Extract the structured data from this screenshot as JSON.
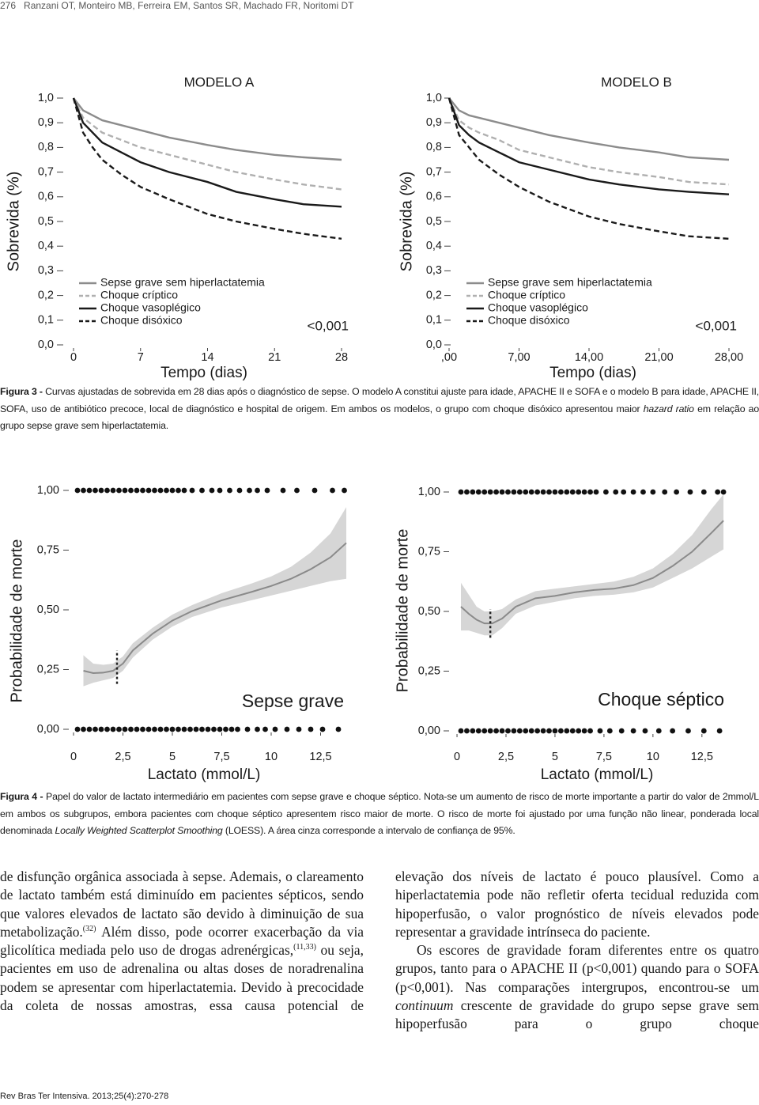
{
  "header": {
    "page": "276",
    "authors": "Ranzani OT, Monteiro MB, Ferreira EM, Santos SR, Machado FR, Noritomi DT"
  },
  "chart_data": [
    {
      "type": "line",
      "title": "MODELO A",
      "xlabel": "Tempo (dias)",
      "ylabel": "Sobrevida (%)",
      "annotation": "<0,001",
      "x": [
        0,
        1,
        2,
        3,
        5,
        7,
        10,
        14,
        17,
        21,
        24,
        28
      ],
      "xlim": [
        0,
        28
      ],
      "xticks": [
        0,
        7,
        14,
        21,
        28
      ],
      "ylim": [
        0,
        1
      ],
      "yticks": [
        {
          "value": 0,
          "label": "0,0"
        },
        {
          "value": 0.1,
          "label": "0,1"
        },
        {
          "value": 0.2,
          "label": "0,2"
        },
        {
          "value": 0.3,
          "label": "0,3"
        },
        {
          "value": 0.4,
          "label": "0,4"
        },
        {
          "value": 0.5,
          "label": "0,5"
        },
        {
          "value": 0.6,
          "label": "0,6"
        },
        {
          "value": 0.7,
          "label": "0,7"
        },
        {
          "value": 0.8,
          "label": "0,8"
        },
        {
          "value": 0.9,
          "label": "0,9"
        },
        {
          "value": 1,
          "label": "1,0"
        }
      ],
      "series": [
        {
          "name": "Sepse grave sem hiperlactatemia",
          "color": "#8c8c8c",
          "dash": false,
          "values": [
            1,
            0.95,
            0.93,
            0.91,
            0.89,
            0.87,
            0.84,
            0.81,
            0.79,
            0.77,
            0.76,
            0.75
          ]
        },
        {
          "name": "Choque críptico",
          "color": "#b0b0b0",
          "dash": true,
          "values": [
            1,
            0.92,
            0.89,
            0.86,
            0.83,
            0.8,
            0.77,
            0.73,
            0.7,
            0.67,
            0.65,
            0.63
          ]
        },
        {
          "name": "Choque vasoplégico",
          "color": "#1a1a1a",
          "dash": false,
          "values": [
            1,
            0.9,
            0.86,
            0.82,
            0.78,
            0.74,
            0.7,
            0.66,
            0.62,
            0.59,
            0.57,
            0.56
          ]
        },
        {
          "name": "Choque disóxico",
          "color": "#1a1a1a",
          "dash": true,
          "values": [
            1,
            0.86,
            0.8,
            0.75,
            0.69,
            0.64,
            0.59,
            0.53,
            0.5,
            0.47,
            0.45,
            0.43
          ]
        }
      ]
    },
    {
      "type": "line",
      "title": "MODELO B",
      "xlabel": "Tempo (dias)",
      "ylabel": "Sobrevida (%)",
      "annotation": "<0,001",
      "x": [
        0,
        1,
        2,
        3,
        5,
        7,
        10,
        14,
        17,
        21,
        24,
        28
      ],
      "xlim": [
        0,
        28
      ],
      "xticks": [
        {
          "value": 0,
          "label": ",00"
        },
        {
          "value": 7,
          "label": "7,00"
        },
        {
          "value": 14,
          "label": "14,00"
        },
        {
          "value": 21,
          "label": "21,00"
        },
        {
          "value": 28,
          "label": "28,00"
        }
      ],
      "ylim": [
        0,
        1
      ],
      "yticks": [
        {
          "value": 0,
          "label": "0,0"
        },
        {
          "value": 0.1,
          "label": "0,1"
        },
        {
          "value": 0.2,
          "label": "0,2"
        },
        {
          "value": 0.3,
          "label": "0,3"
        },
        {
          "value": 0.4,
          "label": "0,4"
        },
        {
          "value": 0.5,
          "label": "0,5"
        },
        {
          "value": 0.6,
          "label": "0,6"
        },
        {
          "value": 0.7,
          "label": "0,7"
        },
        {
          "value": 0.8,
          "label": "0,8"
        },
        {
          "value": 0.9,
          "label": "0,9"
        },
        {
          "value": 1,
          "label": "1,0"
        }
      ],
      "series": [
        {
          "name": "Sepse grave sem hiperlactatemia",
          "color": "#8c8c8c",
          "dash": false,
          "values": [
            1,
            0.95,
            0.93,
            0.92,
            0.9,
            0.88,
            0.85,
            0.82,
            0.8,
            0.78,
            0.76,
            0.75
          ]
        },
        {
          "name": "Choque críptico",
          "color": "#b0b0b0",
          "dash": true,
          "values": [
            1,
            0.91,
            0.88,
            0.86,
            0.83,
            0.79,
            0.76,
            0.72,
            0.7,
            0.68,
            0.66,
            0.65
          ]
        },
        {
          "name": "Choque vasoplégico",
          "color": "#1a1a1a",
          "dash": false,
          "values": [
            1,
            0.89,
            0.85,
            0.82,
            0.78,
            0.74,
            0.71,
            0.67,
            0.65,
            0.63,
            0.62,
            0.61
          ]
        },
        {
          "name": "Choque disóxico",
          "color": "#1a1a1a",
          "dash": true,
          "values": [
            1,
            0.85,
            0.8,
            0.75,
            0.69,
            0.64,
            0.58,
            0.52,
            0.49,
            0.46,
            0.44,
            0.43
          ]
        }
      ]
    },
    {
      "type": "loess",
      "xlabel": "Lactato (mmol/L)",
      "ylabel": "Probabilidade de morte",
      "annotation": "Sepse grave",
      "xlim": [
        -0.3,
        14
      ],
      "xticks": [
        0,
        {
          "value": 2.5,
          "label": "2,5"
        },
        5,
        {
          "value": 7.5,
          "label": "7,5"
        },
        10,
        {
          "value": 12.5,
          "label": "12,5"
        }
      ],
      "ylim": [
        0,
        1
      ],
      "yticks": [
        {
          "value": 0,
          "label": "0,00"
        },
        {
          "value": 0.25,
          "label": "0,25"
        },
        {
          "value": 0.5,
          "label": "0,50"
        },
        {
          "value": 0.75,
          "label": "0,75"
        },
        {
          "value": 1,
          "label": "1,00"
        }
      ],
      "x": [
        0.5,
        1,
        1.5,
        2,
        2.5,
        3,
        4,
        5,
        6,
        7.5,
        9,
        10,
        11,
        12,
        13,
        13.8
      ],
      "values": [
        0.245,
        0.235,
        0.237,
        0.245,
        0.275,
        0.33,
        0.4,
        0.455,
        0.495,
        0.54,
        0.575,
        0.6,
        0.63,
        0.67,
        0.72,
        0.78
      ],
      "lower": [
        0.18,
        0.195,
        0.205,
        0.215,
        0.245,
        0.3,
        0.375,
        0.43,
        0.47,
        0.51,
        0.54,
        0.56,
        0.58,
        0.6,
        0.62,
        0.63
      ],
      "upper": [
        0.31,
        0.275,
        0.27,
        0.275,
        0.305,
        0.36,
        0.425,
        0.48,
        0.52,
        0.57,
        0.61,
        0.64,
        0.68,
        0.74,
        0.82,
        0.93
      ],
      "threshold": {
        "x": 2.2,
        "y": [
          0.19,
          0.33
        ]
      },
      "events": [
        {
          "value": 1,
          "x": [
            0.2,
            0.5,
            0.8,
            1.1,
            1.4,
            1.7,
            2.0,
            2.3,
            2.6,
            2.9,
            3.2,
            3.5,
            3.8,
            4.1,
            4.4,
            4.7,
            5.0,
            5.3,
            5.6,
            6.0,
            6.5,
            7.0,
            7.4,
            7.9,
            8.4,
            8.9,
            9.3,
            9.8,
            10.6,
            11.3,
            12.2,
            13.1,
            13.7
          ]
        },
        {
          "value": 0,
          "x": [
            0.2,
            0.5,
            0.8,
            1.1,
            1.4,
            1.7,
            2.0,
            2.3,
            2.6,
            2.9,
            3.2,
            3.5,
            3.8,
            4.1,
            4.4,
            4.7,
            5.0,
            5.3,
            5.6,
            5.9,
            6.2,
            6.5,
            6.8,
            7.1,
            7.4,
            7.7,
            8.0,
            8.3,
            8.8,
            9.3,
            9.7,
            10.2,
            10.8,
            11.4,
            12.0,
            12.6,
            13.4
          ]
        }
      ]
    },
    {
      "type": "loess",
      "xlabel": "Lactato (mmol/L)",
      "ylabel": "Probabilidade de morte",
      "annotation": "Choque séptico",
      "xlim": [
        -0.3,
        14
      ],
      "xticks": [
        0,
        {
          "value": 2.5,
          "label": "2,5"
        },
        5,
        {
          "value": 7.5,
          "label": "7,5"
        },
        10,
        {
          "value": 12.5,
          "label": "12,5"
        }
      ],
      "ylim": [
        0,
        1
      ],
      "yticks": [
        {
          "value": 0,
          "label": "0,00"
        },
        {
          "value": 0.25,
          "label": "0,25"
        },
        {
          "value": 0.5,
          "label": "0,50"
        },
        {
          "value": 0.75,
          "label": "0,75"
        },
        {
          "value": 1,
          "label": "1,00"
        }
      ],
      "x": [
        0.2,
        0.6,
        1,
        1.4,
        1.8,
        2.3,
        3,
        4,
        5,
        6,
        7,
        8,
        9,
        10,
        11,
        12,
        13,
        13.6
      ],
      "values": [
        0.52,
        0.49,
        0.465,
        0.45,
        0.45,
        0.47,
        0.52,
        0.555,
        0.565,
        0.58,
        0.59,
        0.595,
        0.61,
        0.64,
        0.69,
        0.75,
        0.83,
        0.88
      ],
      "lower": [
        0.42,
        0.42,
        0.41,
        0.4,
        0.4,
        0.43,
        0.49,
        0.525,
        0.54,
        0.555,
        0.565,
        0.57,
        0.58,
        0.6,
        0.64,
        0.68,
        0.73,
        0.76
      ],
      "upper": [
        0.62,
        0.57,
        0.52,
        0.5,
        0.5,
        0.51,
        0.55,
        0.585,
        0.595,
        0.605,
        0.615,
        0.625,
        0.645,
        0.68,
        0.74,
        0.82,
        0.93,
        0.99
      ],
      "threshold": {
        "x": 1.7,
        "y": [
          0.39,
          0.51
        ]
      },
      "events": [
        {
          "value": 1,
          "x": [
            0.2,
            0.5,
            0.8,
            1.1,
            1.4,
            1.7,
            2.0,
            2.3,
            2.6,
            2.9,
            3.2,
            3.5,
            3.8,
            4.1,
            4.4,
            4.7,
            5.0,
            5.3,
            5.6,
            5.9,
            6.2,
            6.5,
            6.8,
            7.1,
            7.6,
            8.1,
            8.5,
            9.0,
            9.5,
            10.0,
            10.6,
            11.2,
            11.9,
            12.6,
            13.3,
            13.6
          ]
        },
        {
          "value": 0,
          "x": [
            0.2,
            0.5,
            0.8,
            1.1,
            1.4,
            1.7,
            2.0,
            2.3,
            2.6,
            2.9,
            3.2,
            3.5,
            3.8,
            4.1,
            4.4,
            4.7,
            5.0,
            5.3,
            5.6,
            5.9,
            6.2,
            6.5,
            6.8,
            7.3,
            7.8,
            8.4,
            9.0,
            9.6,
            10.3,
            11.0,
            11.8,
            12.6,
            13.4
          ]
        }
      ]
    }
  ],
  "captions": {
    "figure3": [
      "Figura 3 -",
      " Curvas ajustadas de sobrevida em 28 dias após o diagnóstico de sepse. O modelo A constitui ajuste para idade, APACHE II e SOFA e o modelo B para idade, APACHE II, SOFA, uso de antibiótico precoce, local de diagnóstico e hospital de origem. Em ambos os modelos, o grupo com choque disóxico apresentou maior ",
      "hazard ratio",
      " em relação ao grupo sepse grave sem hiperlactatemia."
    ],
    "figure4": [
      "Figura 4 -",
      " Papel do valor de lactato intermediário em pacientes com sepse grave e choque séptico. Nota-se um aumento de risco de morte importante a partir do valor de 2mmol/L em ambos os subgrupos, embora pacientes com choque séptico apresentem risco maior de morte. O risco de morte foi ajustado por uma função não linear, ponderada local denominada ",
      "Locally Weighted Scatterplot Smoothing",
      " (LOESS). A área cinza corresponde a intervalo de confiança de 95%."
    ]
  },
  "body": {
    "left": [
      "de disfunção orgânica associada à sepse. Ademais, o clareamento de lactato também está diminuído em pacientes sépticos, sendo que valores elevados de lactato são devido à diminuição de sua metabolização.",
      "(32)",
      " Além disso, pode ocorrer exacerbação da via glicolítica mediada pelo uso de drogas adrenérgicas,",
      "(11,33)",
      " ou seja, pacientes em uso de adrenalina ou altas doses de noradrenalina podem se apresentar com hiperlactatemia. Devido à precocidade da coleta de nossas amostras, essa causa potencial de"
    ],
    "right_p1": "elevação dos níveis de lactato é pouco plausível. Como a hiperlactatemia pode não refletir oferta tecidual reduzida com hipoperfusão, o valor prognóstico de níveis elevados pode representar a gravidade intrínseca do paciente.",
    "right_p2": [
      "Os escores de gravidade foram diferentes entre os quatro grupos, tanto para o APACHE II (p<0,001) quando para o SOFA (p<0,001). Nas comparações intergrupos, encontrou-se um ",
      "continuum",
      " crescente de gravidade do grupo sepse grave sem hipoperfusão para o grupo choque"
    ]
  },
  "footer": "Rev Bras Ter Intensiva. 2013;25(4):270-278"
}
